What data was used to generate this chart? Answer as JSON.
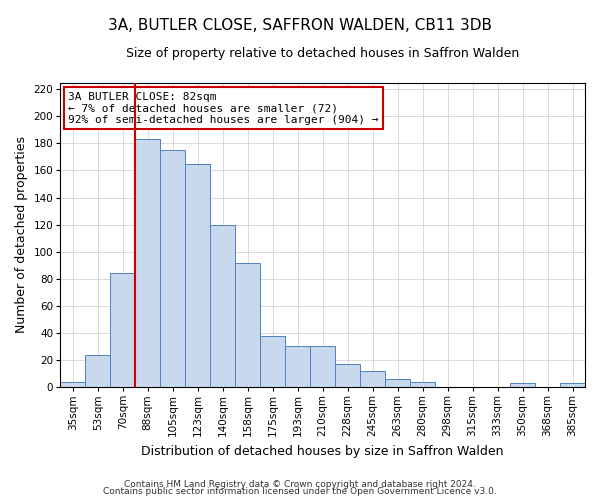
{
  "title": "3A, BUTLER CLOSE, SAFFRON WALDEN, CB11 3DB",
  "subtitle": "Size of property relative to detached houses in Saffron Walden",
  "xlabel": "Distribution of detached houses by size in Saffron Walden",
  "ylabel": "Number of detached properties",
  "bin_labels": [
    "35sqm",
    "53sqm",
    "70sqm",
    "88sqm",
    "105sqm",
    "123sqm",
    "140sqm",
    "158sqm",
    "175sqm",
    "193sqm",
    "210sqm",
    "228sqm",
    "245sqm",
    "263sqm",
    "280sqm",
    "298sqm",
    "315sqm",
    "333sqm",
    "350sqm",
    "368sqm",
    "385sqm"
  ],
  "bin_values": [
    4,
    24,
    84,
    183,
    175,
    165,
    120,
    92,
    38,
    30,
    30,
    17,
    12,
    6,
    4,
    0,
    0,
    0,
    3,
    0,
    3
  ],
  "bar_color": "#c9d9ed",
  "bar_edge_color": "#5080c0",
  "vline_x_pos": 3.0,
  "vline_color": "#cc0000",
  "ylim": [
    0,
    225
  ],
  "yticks": [
    0,
    20,
    40,
    60,
    80,
    100,
    120,
    140,
    160,
    180,
    200,
    220
  ],
  "annotation_title": "3A BUTLER CLOSE: 82sqm",
  "annotation_line1": "← 7% of detached houses are smaller (72)",
  "annotation_line2": "92% of semi-detached houses are larger (904) →",
  "annotation_box_color": "#ffffff",
  "annotation_box_edge": "#cc0000",
  "footer1": "Contains HM Land Registry data © Crown copyright and database right 2024.",
  "footer2": "Contains public sector information licensed under the Open Government Licence v3.0.",
  "bg_color": "#ffffff",
  "grid_color": "#cccccc",
  "title_fontsize": 11,
  "subtitle_fontsize": 9,
  "axis_label_fontsize": 9,
  "tick_fontsize": 7.5,
  "annotation_fontsize": 8
}
